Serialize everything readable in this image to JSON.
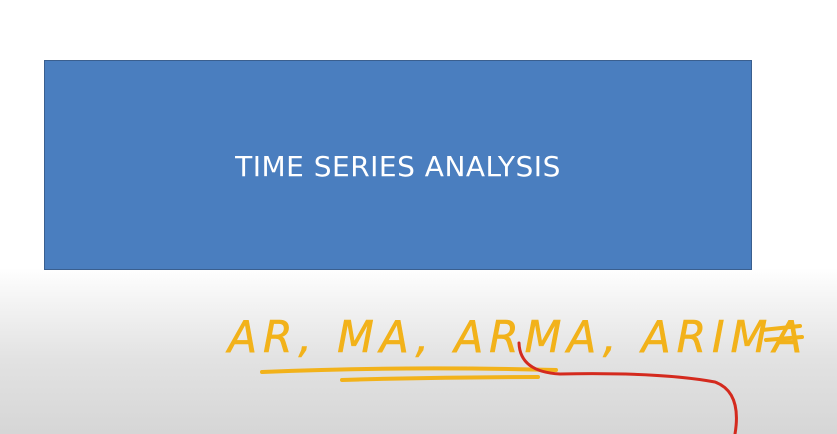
{
  "slide": {
    "title": "TIME SERIES ANALYSIS",
    "box_color": "#4a7ebf",
    "title_color": "#ffffff"
  },
  "annotation": {
    "handwritten_text": "AR, MA, ARMA, ARIMA",
    "ink_color": "#f2b21a",
    "arrow_color": "#d42a1e"
  }
}
